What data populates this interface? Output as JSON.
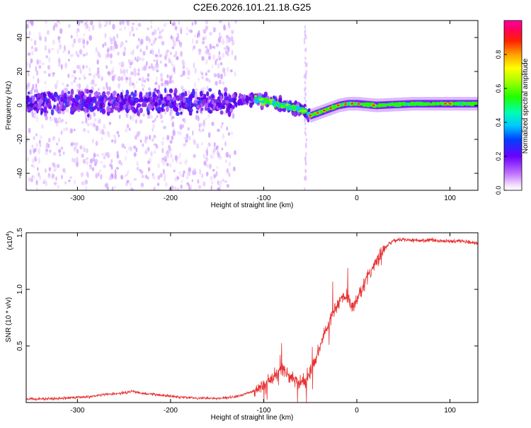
{
  "figure_title": "C2E6.2026.101.21.18.G25",
  "chart_data": [
    {
      "type": "heatmap",
      "title": "C2E6.2026.101.21.18.G25",
      "xlabel": "Height of straight line (km)",
      "ylabel": "Frequency (Hz)",
      "xlim": [
        -355,
        130
      ],
      "ylim": [
        -50,
        50
      ],
      "x_ticks": [
        -300,
        -200,
        -100,
        0,
        100
      ],
      "x_tick_labels": [
        "-300",
        "-200",
        "-100",
        "0",
        "100"
      ],
      "y_ticks": [
        -40,
        -20,
        0,
        20,
        40
      ],
      "y_tick_labels": [
        "-40",
        "-20",
        "0",
        "20",
        "40"
      ],
      "colorbar": {
        "label": "Normalized spectral amplitude",
        "range": [
          0,
          1
        ],
        "ticks": [
          0.0,
          0.2,
          0.4,
          0.6,
          0.8
        ],
        "tick_labels": [
          "0.0",
          "0.2",
          "0.4",
          "0.6",
          "0.8"
        ],
        "colormap": "rainbow (white-violet-blue-cyan-green-yellow-red-magenta)"
      },
      "centerline": {
        "x": [
          -355,
          -300,
          -250,
          -200,
          -150,
          -120,
          -100,
          -80,
          -60,
          -50,
          -40,
          -30,
          -20,
          -10,
          0,
          20,
          60,
          100,
          130
        ],
        "y": [
          2,
          2,
          2,
          2,
          2,
          4,
          3,
          0,
          -2,
          -6,
          -4,
          -2,
          0,
          1,
          1,
          0,
          1,
          1,
          1
        ]
      },
      "features": [
        {
          "x_range": [
            -355,
            -130
          ],
          "description_value": "broad low-amplitude scatter",
          "amplitude": 0.15
        },
        {
          "x_range": [
            -130,
            -50
          ],
          "description_value": "medium amplitude band",
          "amplitude": 0.5
        },
        {
          "x_range": [
            -50,
            130
          ],
          "description_value": "high amplitude narrow band",
          "amplitude": 0.85
        }
      ]
    },
    {
      "type": "line",
      "xlabel": "Height of straight line (km)",
      "ylabel": "SNR (10 * v/v)",
      "y_multiplier_label": "(x10",
      "y_multiplier_exp": "4",
      "y_multiplier_close": ")",
      "xlim": [
        -355,
        130
      ],
      "ylim": [
        0,
        15000
      ],
      "x_ticks": [
        -300,
        -200,
        -100,
        0,
        100
      ],
      "x_tick_labels": [
        "-300",
        "-200",
        "-100",
        "0",
        "100"
      ],
      "y_ticks": [
        5000,
        10000,
        15000
      ],
      "y_tick_labels": [
        "0.5",
        "1.0",
        "1.5"
      ],
      "series": [
        {
          "name": "SNR",
          "color": "#e83030",
          "x": [
            -355,
            -320,
            -290,
            -270,
            -250,
            -240,
            -230,
            -210,
            -190,
            -170,
            -150,
            -130,
            -115,
            -105,
            -100,
            -90,
            -80,
            -75,
            -70,
            -65,
            -60,
            -55,
            -50,
            -45,
            -40,
            -35,
            -30,
            -25,
            -20,
            -15,
            -10,
            -5,
            0,
            5,
            10,
            15,
            20,
            25,
            30,
            35,
            40,
            50,
            60,
            70,
            80,
            90,
            100,
            110,
            120,
            130
          ],
          "y": [
            300,
            350,
            500,
            700,
            850,
            1000,
            800,
            650,
            500,
            400,
            350,
            500,
            900,
            1300,
            1600,
            2200,
            3000,
            2600,
            2300,
            1800,
            1700,
            2000,
            2900,
            3500,
            4800,
            6000,
            7100,
            8000,
            8700,
            9400,
            9300,
            8500,
            9000,
            10000,
            10800,
            11600,
            12400,
            13100,
            13600,
            14100,
            14300,
            14400,
            14350,
            14300,
            14350,
            14300,
            14250,
            14300,
            14200,
            14100
          ]
        }
      ]
    }
  ]
}
